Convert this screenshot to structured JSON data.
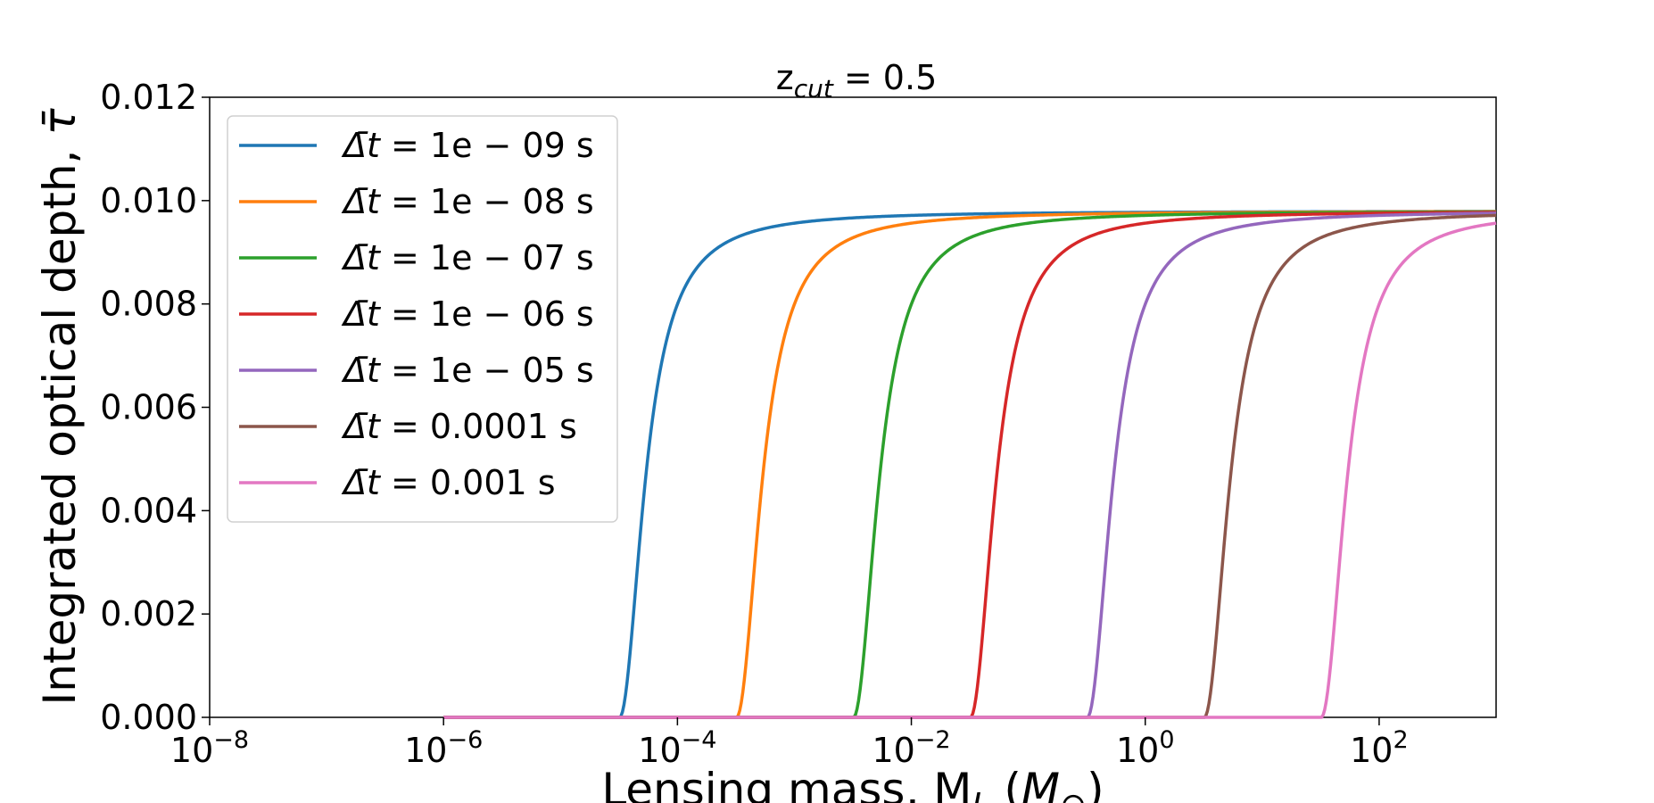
{
  "chart_data": {
    "type": "line",
    "title_base": "z",
    "title_sub": "cut",
    "title_rest": " = 0.5",
    "xlabel_base": "Lensing mass, M",
    "xlabel_sub": "L",
    "xlabel_rest": " (",
    "xlabel_unit": "M",
    "xlabel_unit_sub": "⊙",
    "xlabel_close": ")",
    "ylabel_text": "Integrated optical depth, ",
    "ylabel_symbol": "τ̄",
    "x_scale": "log",
    "xlim": [
      1e-08,
      1000
    ],
    "ylim": [
      0,
      0.012
    ],
    "x_ticks": [
      {
        "value": 1e-08,
        "base": "10",
        "exp": "−8"
      },
      {
        "value": 1e-06,
        "base": "10",
        "exp": "−6"
      },
      {
        "value": 0.0001,
        "base": "10",
        "exp": "−4"
      },
      {
        "value": 0.01,
        "base": "10",
        "exp": "−2"
      },
      {
        "value": 1,
        "base": "10",
        "exp": "0"
      },
      {
        "value": 100,
        "base": "10",
        "exp": "2"
      }
    ],
    "y_ticks": [
      {
        "value": 0,
        "label": "0.000"
      },
      {
        "value": 0.002,
        "label": "0.002"
      },
      {
        "value": 0.004,
        "label": "0.004"
      },
      {
        "value": 0.006,
        "label": "0.006"
      },
      {
        "value": 0.008,
        "label": "0.008"
      },
      {
        "value": 0.01,
        "label": "0.010"
      },
      {
        "value": 0.012,
        "label": "0.012"
      }
    ],
    "grid": false,
    "legend_position": "upper-left",
    "plateau": 0.0098,
    "x_start": 1e-06,
    "x_end": 1000,
    "series": [
      {
        "name": "1e − 09",
        "label_prefix": "Δ̄t = ",
        "label_suffix": " s",
        "color": "#1f77b4",
        "onset": 3.2e-05,
        "half": 5.5e-05
      },
      {
        "name": "1e − 08",
        "label_prefix": "Δ̄t = ",
        "label_suffix": " s",
        "color": "#ff7f0e",
        "onset": 0.00032,
        "half": 0.00055
      },
      {
        "name": "1e − 07",
        "label_prefix": "Δ̄t = ",
        "label_suffix": " s",
        "color": "#2ca02c",
        "onset": 0.0032,
        "half": 0.0055
      },
      {
        "name": "1e − 06",
        "label_prefix": "Δ̄t = ",
        "label_suffix": " s",
        "color": "#d62728",
        "onset": 0.032,
        "half": 0.055
      },
      {
        "name": "1e − 05",
        "label_prefix": "Δ̄t = ",
        "label_suffix": " s",
        "color": "#9467bd",
        "onset": 0.32,
        "half": 0.55
      },
      {
        "name": "0.0001",
        "label_prefix": "Δ̄t = ",
        "label_suffix": " s",
        "color": "#8c564b",
        "onset": 3.2,
        "half": 5.5
      },
      {
        "name": "0.001",
        "label_prefix": "Δ̄t = ",
        "label_suffix": " s",
        "color": "#e377c2",
        "onset": 32,
        "half": 55
      }
    ]
  }
}
